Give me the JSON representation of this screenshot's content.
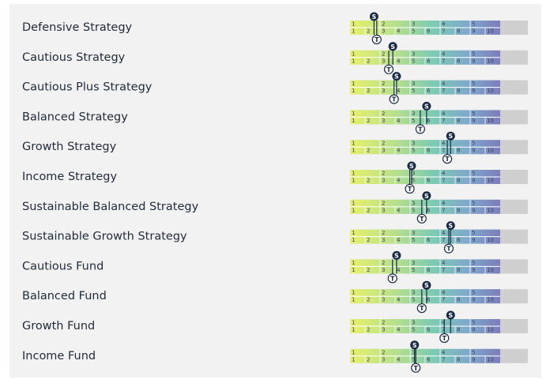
{
  "scale": {
    "min": 0,
    "max": 10,
    "top_labels": [
      "1",
      "2",
      "3",
      "4",
      "5"
    ],
    "bottom_labels": [
      "1",
      "2",
      "3",
      "4",
      "5",
      "6",
      "7",
      "8",
      "9",
      "10"
    ]
  },
  "markers": {
    "s": "S",
    "t": "T"
  },
  "rows": [
    {
      "name": "Defensive Strategy",
      "s": 1.6,
      "t": 1.7
    },
    {
      "name": "Cautious Strategy",
      "s": 2.85,
      "t": 2.5
    },
    {
      "name": "Cautious Plus Strategy",
      "s": 3.1,
      "t": 2.85
    },
    {
      "name": "Balanced Strategy",
      "s": 5.1,
      "t": 4.6
    },
    {
      "name": "Growth Strategy",
      "s": 6.7,
      "t": 6.4
    },
    {
      "name": "Income Strategy",
      "s": 4.1,
      "t": 3.9
    },
    {
      "name": "Sustainable Balanced Strategy",
      "s": 5.1,
      "t": 4.7
    },
    {
      "name": "Sustainable Growth Strategy",
      "s": 6.7,
      "t": 6.5
    },
    {
      "name": "Cautious Fund",
      "s": 3.1,
      "t": 2.75
    },
    {
      "name": "Balanced Fund",
      "s": 5.1,
      "t": 4.7
    },
    {
      "name": "Growth Fund",
      "s": 6.7,
      "t": 6.2
    },
    {
      "name": "Income Fund",
      "s": 4.3,
      "t": 4.3
    }
  ]
}
